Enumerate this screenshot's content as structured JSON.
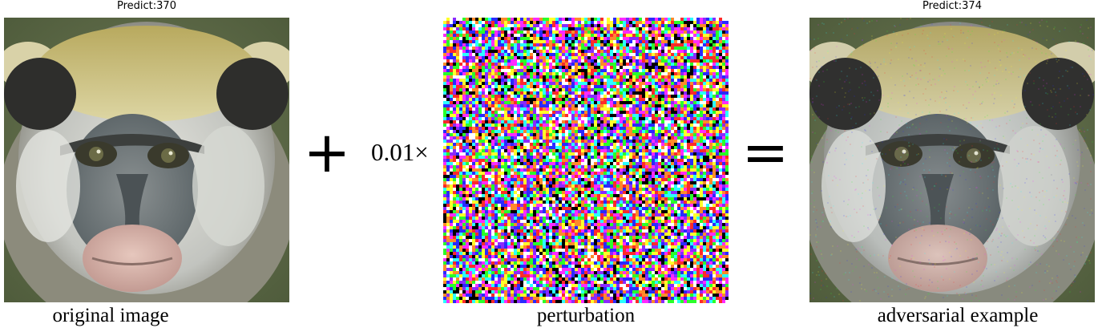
{
  "left_panel": {
    "prediction": "Predict:370",
    "caption": "original image"
  },
  "middle_panel": {
    "scalar": "0.01×",
    "caption": "perturbation"
  },
  "right_panel": {
    "prediction": "Predict:374",
    "caption": "adversarial example"
  },
  "operators": {
    "plus": "+",
    "equals": "="
  }
}
